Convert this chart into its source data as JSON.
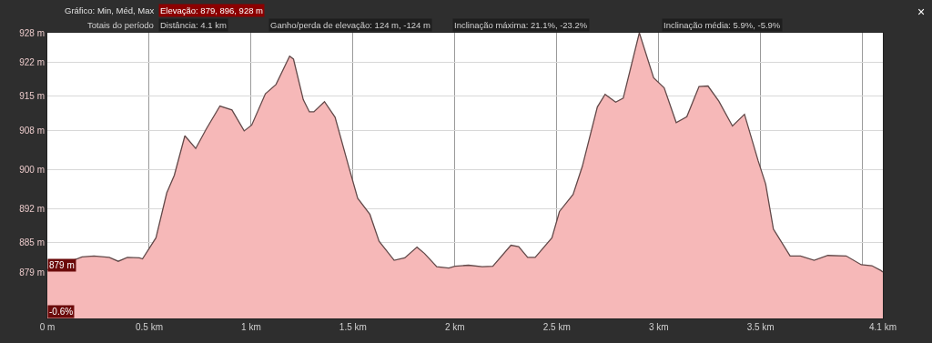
{
  "chart_data": {
    "type": "area",
    "annotations": [
      "Gráfico: Min, Méd, Max",
      "Elevação: 879, 896, 928 m",
      "Totais do período",
      "Distância: 4.1 km",
      "Ganho/perda de elevação: 124 m, -124 m",
      "Inclinação máxima: 21.1%, -23.2%",
      "Inclinação média: 5.9%, -5.9%",
      "×",
      {
        "text": "879 m",
        "x": 0,
        "y": 879
      },
      "-0.6%"
    ],
    "x": [
      0,
      0.066,
      0.17,
      0.229,
      0.304,
      0.348,
      0.393,
      0.452,
      0.467,
      0.533,
      0.586,
      0.623,
      0.675,
      0.728,
      0.78,
      0.847,
      0.906,
      0.966,
      1.003,
      1.07,
      1.122,
      1.189,
      1.208,
      1.256,
      1.286,
      1.308,
      1.36,
      1.412,
      1.479,
      1.523,
      1.583,
      1.628,
      1.702,
      1.754,
      1.814,
      1.851,
      1.911,
      1.97,
      2.0,
      2.067,
      2.134,
      2.186,
      2.275,
      2.313,
      2.357,
      2.394,
      2.476,
      2.513,
      2.58,
      2.625,
      2.699,
      2.737,
      2.789,
      2.826,
      2.905,
      2.975,
      3.027,
      3.086,
      3.138,
      3.198,
      3.242,
      3.295,
      3.362,
      3.421,
      3.488,
      3.525,
      3.563,
      3.645,
      3.696,
      3.763,
      3.83,
      3.92,
      3.994,
      4.046,
      4.091,
      4.1
    ],
    "series": [
      {
        "color": "#f6b8b8",
        "values": [
          879.5,
          880.4,
          882.1,
          882.3,
          882.0,
          881.2,
          882.0,
          881.9,
          881.7,
          886.0,
          895.2,
          898.8,
          906.9,
          904.3,
          908.3,
          913.0,
          912.2,
          907.9,
          909.1,
          915.5,
          917.4,
          923.2,
          922.6,
          914.3,
          911.8,
          911.8,
          913.9,
          910.7,
          900.6,
          894.1,
          890.8,
          885.3,
          881.4,
          881.9,
          884.1,
          882.8,
          880.1,
          879.8,
          880.2,
          880.4,
          880.1,
          880.2,
          884.5,
          884.2,
          882.0,
          882.0,
          886.0,
          891.4,
          894.9,
          900.6,
          912.8,
          915.4,
          913.8,
          914.6,
          928.0,
          918.8,
          916.7,
          909.6,
          910.8,
          917.0,
          917.1,
          914.0,
          908.9,
          911.3,
          901.8,
          897.0,
          887.8,
          882.3,
          882.3,
          881.4,
          882.4,
          882.3,
          880.5,
          880.3,
          879.3,
          879.0
        ]
      }
    ],
    "xlim": [
      0,
      4.1
    ],
    "xticks": [
      {
        "value": 0,
        "label": "0 m"
      },
      {
        "value": 0.5,
        "label": "0.5 km"
      },
      {
        "value": 1,
        "label": "1 km"
      },
      {
        "value": 1.5,
        "label": "1.5 km"
      },
      {
        "value": 2,
        "label": "2 km"
      },
      {
        "value": 2.5,
        "label": "2.5 km"
      },
      {
        "value": 3,
        "label": "3 km"
      },
      {
        "value": 3.5,
        "label": "3.5 km"
      },
      {
        "value": 4,
        "label": null
      },
      {
        "value": 4.1,
        "label": "4.1 km"
      }
    ],
    "ylim": [
      869.5,
      928
    ],
    "yticks": [
      {
        "value": 879,
        "label": "879 m"
      },
      {
        "value": 885,
        "label": "885 m"
      },
      {
        "value": 892,
        "label": "892 m"
      },
      {
        "value": 900,
        "label": "900 m"
      },
      {
        "value": 908,
        "label": "908 m"
      },
      {
        "value": 915,
        "label": "915 m"
      },
      {
        "value": 922,
        "label": "922 m"
      },
      {
        "value": 928,
        "label": "928 m"
      }
    ],
    "grid": true,
    "marker": "none",
    "line_style": "solid"
  }
}
